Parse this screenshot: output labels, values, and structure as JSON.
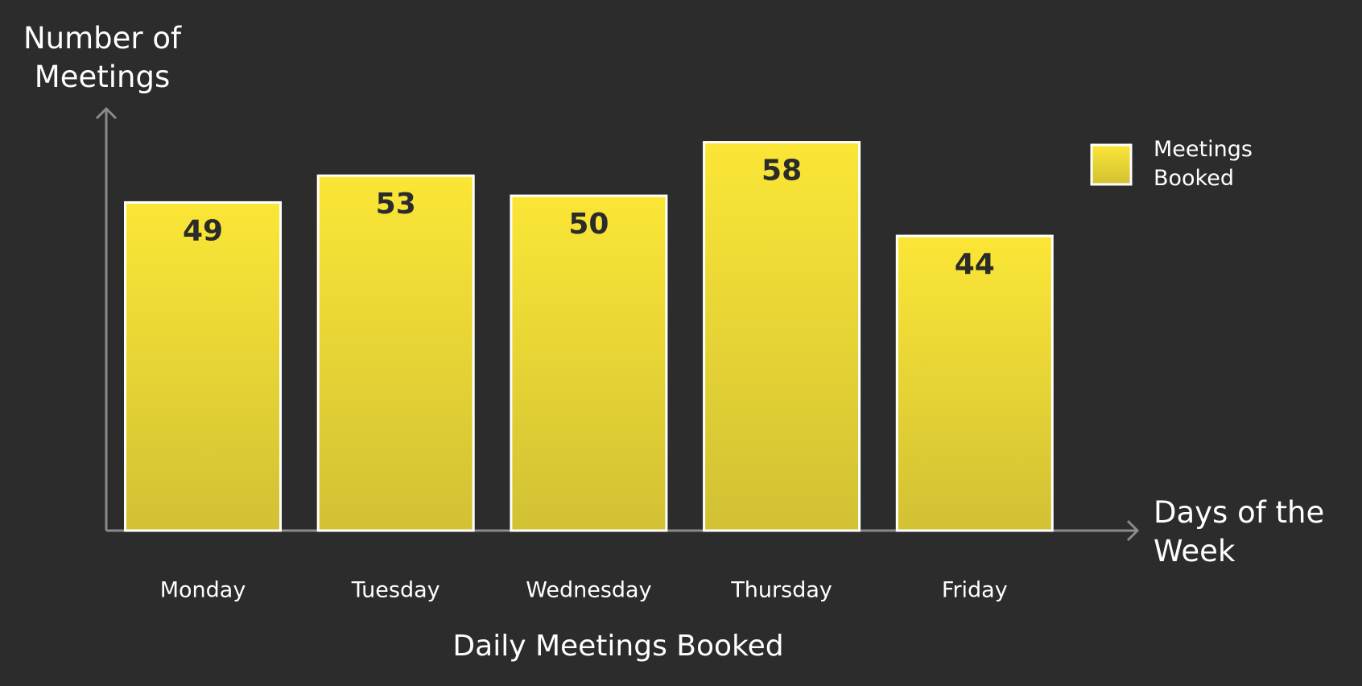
{
  "chart_data": {
    "type": "bar",
    "title": "Daily Meetings Booked",
    "categories": [
      "Monday",
      "Tuesday",
      "Wednesday",
      "Thursday",
      "Friday"
    ],
    "series": [
      {
        "name": "Meetings Booked",
        "color": "#fbe636",
        "values": [
          49,
          53,
          50,
          58,
          44
        ]
      }
    ],
    "y_axis_label": "Number of Meetings",
    "x_axis_label": "Days of the Week",
    "ylim": [
      0,
      63
    ],
    "grid": false,
    "legend": "right"
  }
}
